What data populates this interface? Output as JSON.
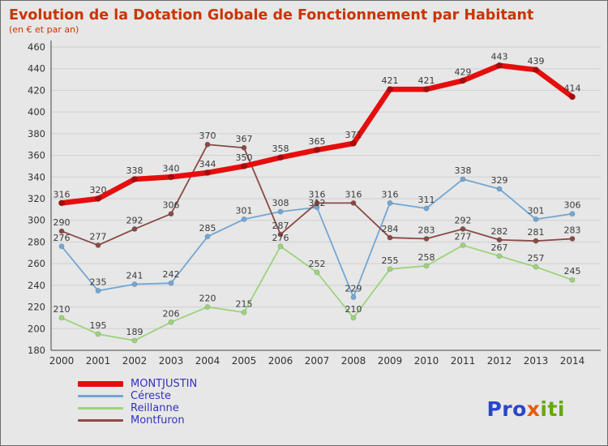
{
  "header": {
    "title": "Evolution de la Dotation Globale de Fonctionnement par Habitant",
    "subtitle": "(en € et par an)"
  },
  "chart_data": {
    "type": "line",
    "title": "Evolution de la Dotation Globale de Fonctionnement par Habitant",
    "subtitle": "(en € et par an)",
    "xlabel": "",
    "ylabel": "",
    "x": [
      2000,
      2001,
      2002,
      2003,
      2004,
      2005,
      2006,
      2007,
      2008,
      2009,
      2010,
      2011,
      2012,
      2013,
      2014
    ],
    "ylim": [
      180,
      460
    ],
    "ytick_step": 20,
    "grid": true,
    "legend_position": "bottom-left",
    "label_color": "#3a3a3a",
    "series": [
      {
        "name": "MONTJUSTIN",
        "color": "#e60d0d",
        "point_color": "#a50d0d",
        "line_width": 6.5,
        "values": [
          316,
          320,
          338,
          340,
          344,
          350,
          358,
          365,
          371,
          421,
          421,
          429,
          443,
          439,
          414
        ]
      },
      {
        "name": "Céreste",
        "color": "#73a6d4",
        "line_width": 1.8,
        "values": [
          276,
          235,
          241,
          242,
          285,
          301,
          308,
          312,
          229,
          316,
          311,
          338,
          329,
          301,
          306
        ]
      },
      {
        "name": "Reillanne",
        "color": "#9cd37b",
        "line_width": 1.8,
        "values": [
          210,
          195,
          189,
          206,
          220,
          215,
          276,
          252,
          210,
          255,
          258,
          277,
          267,
          257,
          245
        ]
      },
      {
        "name": "Montfuron",
        "color": "#8a4a44",
        "line_width": 1.8,
        "values": [
          290,
          277,
          292,
          306,
          370,
          367,
          287,
          316,
          316,
          284,
          283,
          292,
          282,
          281,
          283
        ]
      }
    ]
  },
  "logo": {
    "segments": [
      {
        "text": "Pro",
        "color": "#2a46c8"
      },
      {
        "text": "x",
        "color": "#e8590c"
      },
      {
        "text": "iti",
        "color": "#67a810"
      }
    ]
  }
}
